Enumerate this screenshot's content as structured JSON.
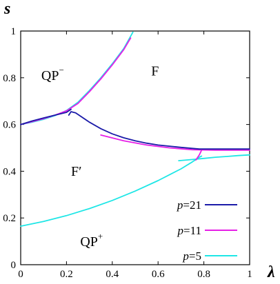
{
  "chart_data": {
    "type": "line",
    "xlabel": "λ",
    "ylabel": "s",
    "xlim": [
      0,
      1
    ],
    "ylim": [
      0,
      1
    ],
    "x_ticks": [
      "0",
      "0.2",
      "0.4",
      "0.6",
      "0.8",
      "1"
    ],
    "y_ticks": [
      "0",
      "0.2",
      "0.4",
      "0.6",
      "0.8",
      "1"
    ],
    "grid": false,
    "legend_position": "bottom-right",
    "regions": [
      {
        "label": "QP",
        "sup": "−",
        "x": 0.09,
        "y": 0.79
      },
      {
        "label": "F",
        "x": 0.57,
        "y": 0.81
      },
      {
        "label": "F′",
        "x": 0.22,
        "y": 0.38
      },
      {
        "label": "QP",
        "sup": "+",
        "x": 0.26,
        "y": 0.08
      }
    ],
    "legend": [
      {
        "prefix": "p",
        "text": "=21",
        "color": "#1a1aa8"
      },
      {
        "prefix": "p",
        "text": "=11",
        "color": "#e61ee6"
      },
      {
        "prefix": "p",
        "text": "=5",
        "color": "#1ee6e6"
      }
    ],
    "series": [
      {
        "legend_index": 2,
        "color": "#1ee6e6",
        "segments": [
          [
            [
              0.0,
              0.6
            ],
            [
              0.05,
              0.61
            ],
            [
              0.1,
              0.622
            ],
            [
              0.15,
              0.638
            ],
            [
              0.2,
              0.66
            ],
            [
              0.25,
              0.695
            ],
            [
              0.3,
              0.745
            ],
            [
              0.35,
              0.8
            ],
            [
              0.4,
              0.86
            ],
            [
              0.45,
              0.925
            ],
            [
              0.49,
              0.995
            ]
          ],
          [
            [
              0.0,
              0.165
            ],
            [
              0.1,
              0.185
            ],
            [
              0.2,
              0.21
            ],
            [
              0.3,
              0.24
            ],
            [
              0.4,
              0.275
            ],
            [
              0.5,
              0.315
            ],
            [
              0.6,
              0.36
            ],
            [
              0.7,
              0.41
            ],
            [
              0.75,
              0.44
            ],
            [
              0.78,
              0.46
            ],
            [
              0.79,
              0.465
            ]
          ],
          [
            [
              0.69,
              0.445
            ],
            [
              0.75,
              0.45
            ],
            [
              0.8,
              0.455
            ],
            [
              0.85,
              0.46
            ],
            [
              0.9,
              0.463
            ],
            [
              0.95,
              0.467
            ],
            [
              1.0,
              0.47
            ]
          ]
        ]
      },
      {
        "legend_index": 1,
        "color": "#e61ee6",
        "segments": [
          [
            [
              0.0,
              0.6
            ],
            [
              0.05,
              0.612
            ],
            [
              0.1,
              0.625
            ],
            [
              0.15,
              0.64
            ],
            [
              0.2,
              0.658
            ],
            [
              0.25,
              0.69
            ],
            [
              0.3,
              0.74
            ],
            [
              0.35,
              0.795
            ],
            [
              0.4,
              0.855
            ],
            [
              0.45,
              0.92
            ],
            [
              0.48,
              0.97
            ]
          ],
          [
            [
              0.35,
              0.555
            ],
            [
              0.45,
              0.53
            ],
            [
              0.55,
              0.512
            ],
            [
              0.65,
              0.5
            ],
            [
              0.75,
              0.492
            ],
            [
              0.85,
              0.49
            ],
            [
              1.0,
              0.49
            ]
          ],
          [
            [
              0.765,
              0.448
            ],
            [
              0.78,
              0.47
            ],
            [
              0.79,
              0.49
            ]
          ]
        ]
      },
      {
        "legend_index": 0,
        "color": "#1a1aa8",
        "segments": [
          [
            [
              0.0,
              0.6
            ],
            [
              0.05,
              0.615
            ],
            [
              0.1,
              0.628
            ],
            [
              0.15,
              0.64
            ],
            [
              0.2,
              0.652
            ],
            [
              0.22,
              0.665
            ]
          ],
          [
            [
              0.21,
              0.64
            ],
            [
              0.22,
              0.655
            ],
            [
              0.24,
              0.65
            ],
            [
              0.3,
              0.61
            ],
            [
              0.35,
              0.582
            ],
            [
              0.4,
              0.56
            ],
            [
              0.45,
              0.543
            ],
            [
              0.5,
              0.53
            ],
            [
              0.55,
              0.52
            ],
            [
              0.6,
              0.512
            ],
            [
              0.7,
              0.502
            ],
            [
              0.78,
              0.495
            ],
            [
              0.85,
              0.495
            ],
            [
              1.0,
              0.495
            ]
          ]
        ]
      }
    ]
  }
}
